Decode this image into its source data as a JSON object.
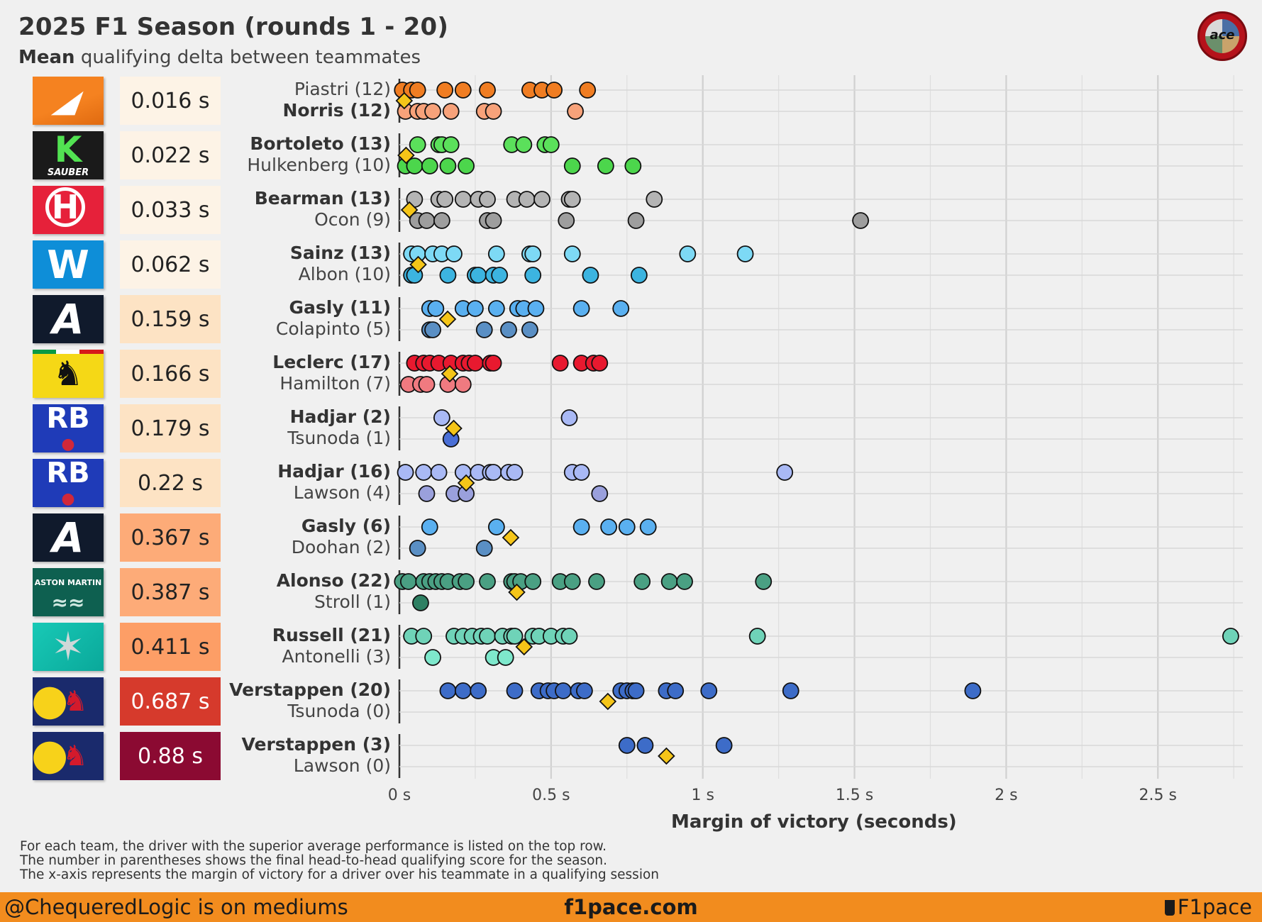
{
  "header": {
    "title": "2025 F1 Season (rounds 1 - 20)",
    "subtitle_bold": "Mean",
    "subtitle_rest": " qualifying delta between teammates",
    "logo_text": "ace"
  },
  "chart_data": {
    "type": "scatter",
    "xlabel": "Margin of victory (seconds)",
    "xlim": [
      0,
      2.78
    ],
    "x_ticks": [
      0,
      0.5,
      1,
      1.5,
      2,
      2.5
    ],
    "x_tick_labels": [
      "0 s",
      "0.5 s",
      "1 s",
      "1.5 s",
      "2 s",
      "2.5 s"
    ],
    "grid": true,
    "marker_mean": "diamond",
    "mean_color": "#f5c518",
    "teams": [
      {
        "team_logo": "mclaren-logo",
        "mean_delta": 0.016,
        "delta_label": "0.016 s",
        "box_color": "#fdf3e6",
        "delta_text_color": "#222",
        "top": {
          "label": "Piastri (12)",
          "bold": false,
          "color": "#f07d22",
          "values": [
            0.01,
            0.04,
            0.06,
            0.15,
            0.21,
            0.29,
            0.43,
            0.47,
            0.51,
            0.62
          ]
        },
        "bottom": {
          "label": "Norris (12)",
          "bold": true,
          "color": "#f7a27a",
          "values": [
            0.02,
            0.06,
            0.08,
            0.11,
            0.17,
            0.28,
            0.31,
            0.58
          ]
        }
      },
      {
        "team_logo": "sauber-logo",
        "mean_delta": 0.022,
        "delta_label": "0.022 s",
        "box_color": "#fdf3e6",
        "delta_text_color": "#222",
        "top": {
          "label": "Bortoleto (13)",
          "bold": true,
          "color": "#5be05b",
          "values": [
            0.06,
            0.13,
            0.14,
            0.17,
            0.37,
            0.41,
            0.48,
            0.5
          ]
        },
        "bottom": {
          "label": "Hulkenberg (10)",
          "bold": false,
          "color": "#4cd64c",
          "values": [
            0.02,
            0.05,
            0.1,
            0.16,
            0.22,
            0.57,
            0.68,
            0.77
          ]
        }
      },
      {
        "team_logo": "haas-logo",
        "mean_delta": 0.033,
        "delta_label": "0.033 s",
        "box_color": "#fdf3e6",
        "delta_text_color": "#222",
        "top": {
          "label": "Bearman (13)",
          "bold": true,
          "color": "#b4b4b4",
          "values": [
            0.05,
            0.13,
            0.15,
            0.21,
            0.26,
            0.29,
            0.38,
            0.42,
            0.47,
            0.56,
            0.57,
            0.84
          ]
        },
        "bottom": {
          "label": "Ocon (9)",
          "bold": false,
          "color": "#9e9e9e",
          "values": [
            0.06,
            0.09,
            0.14,
            0.29,
            0.31,
            0.55,
            0.78,
            1.52
          ]
        }
      },
      {
        "team_logo": "williams-logo",
        "mean_delta": 0.062,
        "delta_label": "0.062 s",
        "box_color": "#fdf3e6",
        "delta_text_color": "#222",
        "top": {
          "label": "Sainz (13)",
          "bold": true,
          "color": "#7dd9f5",
          "values": [
            0.04,
            0.06,
            0.11,
            0.14,
            0.18,
            0.32,
            0.43,
            0.44,
            0.57,
            0.95,
            1.14
          ]
        },
        "bottom": {
          "label": "Albon (10)",
          "bold": false,
          "color": "#3cb4e0",
          "values": [
            0.04,
            0.05,
            0.16,
            0.25,
            0.26,
            0.31,
            0.33,
            0.44,
            0.63,
            0.79
          ]
        }
      },
      {
        "team_logo": "alpine-logo",
        "mean_delta": 0.159,
        "delta_label": "0.159 s",
        "box_color": "#fde3c4",
        "delta_text_color": "#222",
        "top": {
          "label": "Gasly (11)",
          "bold": true,
          "color": "#5ab0f0",
          "values": [
            0.1,
            0.12,
            0.21,
            0.25,
            0.32,
            0.39,
            0.41,
            0.45,
            0.6,
            0.73
          ]
        },
        "bottom": {
          "label": "Colapinto (5)",
          "bold": false,
          "color": "#5a8fc4",
          "values": [
            0.1,
            0.11,
            0.28,
            0.36,
            0.43
          ]
        }
      },
      {
        "team_logo": "ferrari-logo",
        "mean_delta": 0.166,
        "delta_label": "0.166 s",
        "box_color": "#fde3c4",
        "delta_text_color": "#222",
        "top": {
          "label": "Leclerc (17)",
          "bold": true,
          "color": "#e8192f",
          "values": [
            0.05,
            0.08,
            0.1,
            0.13,
            0.17,
            0.21,
            0.23,
            0.25,
            0.3,
            0.31,
            0.53,
            0.6,
            0.64,
            0.66
          ]
        },
        "bottom": {
          "label": "Hamilton (7)",
          "bold": false,
          "color": "#f07a80",
          "values": [
            0.03,
            0.07,
            0.09,
            0.16,
            0.21
          ]
        }
      },
      {
        "team_logo": "racing-bulls-logo",
        "mean_delta": 0.179,
        "delta_label": "0.179 s",
        "box_color": "#fde3c4",
        "delta_text_color": "#222",
        "top": {
          "label": "Hadjar (2)",
          "bold": true,
          "color": "#a9b9f5",
          "values": [
            0.14,
            0.56
          ]
        },
        "bottom": {
          "label": "Tsunoda (1)",
          "bold": false,
          "color": "#4a6fd6",
          "values": [
            0.17
          ]
        }
      },
      {
        "team_logo": "racing-bulls-logo",
        "mean_delta": 0.22,
        "delta_label": "0.22 s",
        "box_color": "#fde3c4",
        "delta_text_color": "#222",
        "top": {
          "label": "Hadjar (16)",
          "bold": true,
          "color": "#a9b9f5",
          "values": [
            0.02,
            0.08,
            0.13,
            0.21,
            0.26,
            0.3,
            0.31,
            0.36,
            0.38,
            0.57,
            0.6,
            1.27
          ]
        },
        "bottom": {
          "label": "Lawson (4)",
          "bold": false,
          "color": "#9aa0dc",
          "values": [
            0.09,
            0.18,
            0.22,
            0.66
          ]
        }
      },
      {
        "team_logo": "alpine-logo",
        "mean_delta": 0.367,
        "delta_label": "0.367 s",
        "box_color": "#fdab78",
        "delta_text_color": "#222",
        "top": {
          "label": "Gasly (6)",
          "bold": true,
          "color": "#5ab0f0",
          "values": [
            0.1,
            0.32,
            0.6,
            0.69,
            0.75,
            0.82
          ]
        },
        "bottom": {
          "label": "Doohan (2)",
          "bold": false,
          "color": "#5a8fc4",
          "values": [
            0.06,
            0.28
          ]
        }
      },
      {
        "team_logo": "aston-martin-logo",
        "mean_delta": 0.387,
        "delta_label": "0.387 s",
        "box_color": "#fdab78",
        "delta_text_color": "#222",
        "top": {
          "label": "Alonso (22)",
          "bold": true,
          "color": "#4aa083",
          "values": [
            0.01,
            0.03,
            0.08,
            0.1,
            0.12,
            0.14,
            0.16,
            0.2,
            0.22,
            0.29,
            0.37,
            0.38,
            0.4,
            0.44,
            0.53,
            0.57,
            0.65,
            0.8,
            0.89,
            0.94,
            1.2
          ]
        },
        "bottom": {
          "label": "Stroll (1)",
          "bold": false,
          "color": "#2e8063",
          "values": [
            0.07
          ]
        }
      },
      {
        "team_logo": "mercedes-logo",
        "mean_delta": 0.411,
        "delta_label": "0.411 s",
        "box_color": "#fd9e66",
        "delta_text_color": "#222",
        "top": {
          "label": "Russell (21)",
          "bold": true,
          "color": "#6fd3b8",
          "values": [
            0.04,
            0.08,
            0.18,
            0.21,
            0.24,
            0.27,
            0.29,
            0.34,
            0.37,
            0.38,
            0.44,
            0.46,
            0.5,
            0.54,
            0.56,
            1.18,
            2.74
          ]
        },
        "bottom": {
          "label": "Antonelli (3)",
          "bold": false,
          "color": "#7ee8cc",
          "values": [
            0.11,
            0.31,
            0.35
          ]
        }
      },
      {
        "team_logo": "red-bull-logo",
        "mean_delta": 0.687,
        "delta_label": "0.687 s",
        "box_color": "#d63a2c",
        "delta_text_color": "#ffffff",
        "top": {
          "label": "Verstappen (20)",
          "bold": true,
          "color": "#3d6cc8",
          "values": [
            0.16,
            0.21,
            0.26,
            0.38,
            0.46,
            0.49,
            0.51,
            0.54,
            0.59,
            0.61,
            0.73,
            0.75,
            0.77,
            0.78,
            0.88,
            0.91,
            1.02,
            1.29,
            1.89
          ]
        },
        "bottom": {
          "label": "Tsunoda (0)",
          "bold": false,
          "color": "#3d6cc8",
          "values": []
        }
      },
      {
        "team_logo": "red-bull-logo",
        "mean_delta": 0.88,
        "delta_label": "0.88 s",
        "box_color": "#8b0a32",
        "delta_text_color": "#ffffff",
        "top": {
          "label": "Verstappen (3)",
          "bold": true,
          "color": "#3d6cc8",
          "values": [
            0.75,
            0.81,
            1.07
          ]
        },
        "bottom": {
          "label": "Lawson (0)",
          "bold": false,
          "color": "#3d6cc8",
          "values": []
        }
      }
    ]
  },
  "notes": [
    "For each team, the driver with the superior average performance is listed on the top row.",
    "The number in parentheses shows the final head-to-head qualifying score for the season.",
    "The x-axis represents the margin of victory for a driver over his teammate in a qualifying session"
  ],
  "footer": {
    "left": "@ChequeredLogic is on mediums",
    "center": "f1pace.com",
    "right": "F1pace"
  }
}
